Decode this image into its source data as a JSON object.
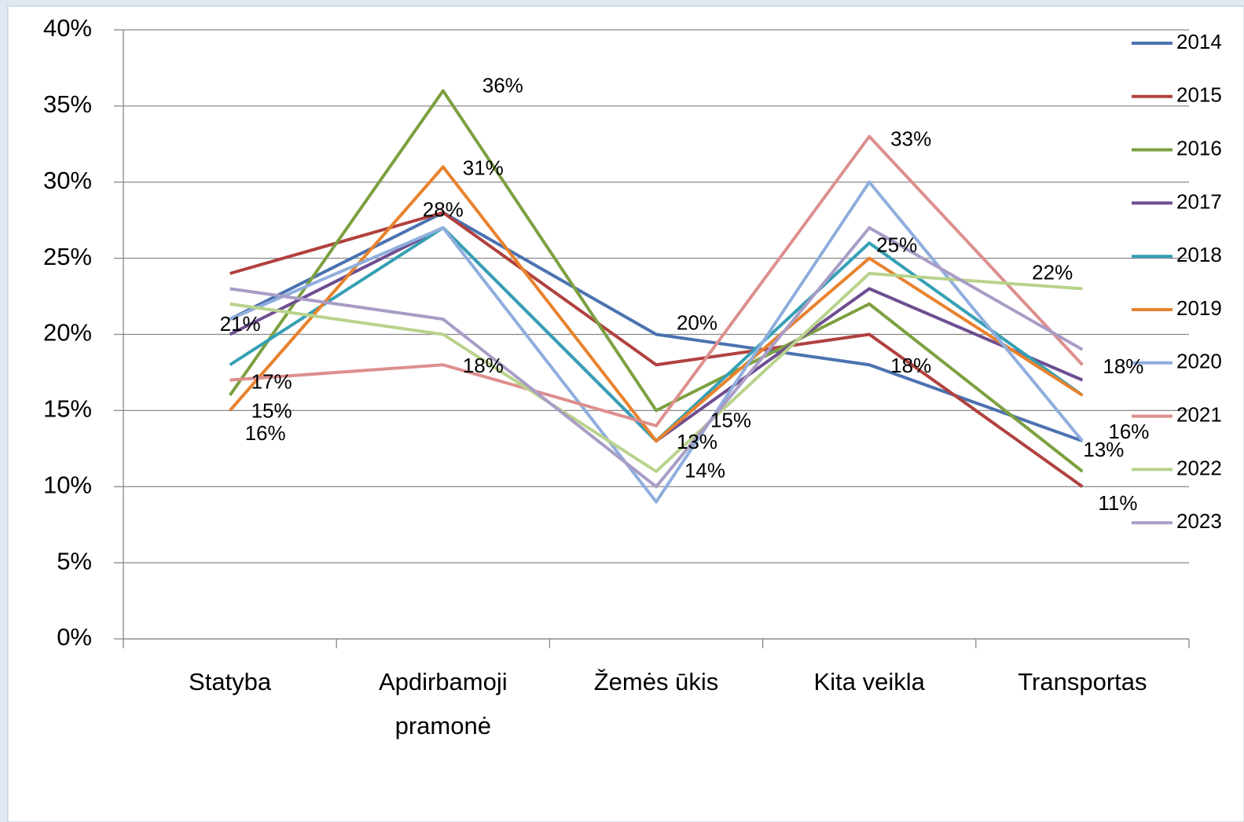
{
  "chart_data": {
    "type": "line",
    "categories": [
      "Statyba",
      "Apdirbamoji pramonė",
      "Žemės ūkis",
      "Kita veikla",
      "Transportas"
    ],
    "ylim": [
      0,
      40
    ],
    "yticks": [
      {
        "value": 0,
        "label": "0%"
      },
      {
        "value": 5,
        "label": "5%"
      },
      {
        "value": 10,
        "label": "10%"
      },
      {
        "value": 15,
        "label": "15%"
      },
      {
        "value": 20,
        "label": "20%"
      },
      {
        "value": 25,
        "label": "25%"
      },
      {
        "value": 30,
        "label": "30%"
      },
      {
        "value": 35,
        "label": "35%"
      },
      {
        "value": 40,
        "label": "40%"
      }
    ],
    "grid": true,
    "legend": "right",
    "series": [
      {
        "name": "2014",
        "color": "#4a72b0",
        "values": [
          21,
          28,
          20,
          18,
          13
        ],
        "value_labels": [
          "21%",
          "28%",
          "20%",
          "18%",
          "13%"
        ]
      },
      {
        "name": "2015",
        "color": "#b0413e",
        "values": [
          24,
          28,
          18,
          20,
          10
        ]
      },
      {
        "name": "2016",
        "color": "#7da040",
        "values": [
          16,
          36,
          15,
          22,
          11
        ],
        "value_labels": [
          "16%",
          "36%",
          "15%",
          "22%",
          "11%"
        ]
      },
      {
        "name": "2017",
        "color": "#6e4e92",
        "values": [
          20,
          27,
          13,
          23,
          17
        ]
      },
      {
        "name": "2018",
        "color": "#35a0b4",
        "values": [
          18,
          27,
          13,
          26,
          16
        ]
      },
      {
        "name": "2019",
        "color": "#e8822e",
        "values": [
          15,
          31,
          13,
          25,
          16
        ],
        "value_labels": [
          "15%",
          "31%",
          "13%",
          "25%",
          "16%"
        ]
      },
      {
        "name": "2020",
        "color": "#8faedd",
        "values": [
          21,
          27,
          9,
          30,
          13
        ]
      },
      {
        "name": "2021",
        "color": "#dc8f8e",
        "values": [
          17,
          18,
          14,
          33,
          18
        ],
        "value_labels": [
          "17%",
          "18%",
          "14%",
          "33%",
          "18%"
        ]
      },
      {
        "name": "2022",
        "color": "#b8d38c",
        "values": [
          22,
          20,
          11,
          24,
          23
        ]
      },
      {
        "name": "2023",
        "color": "#a99cc6",
        "values": [
          23,
          21,
          10,
          27,
          19
        ]
      }
    ]
  }
}
